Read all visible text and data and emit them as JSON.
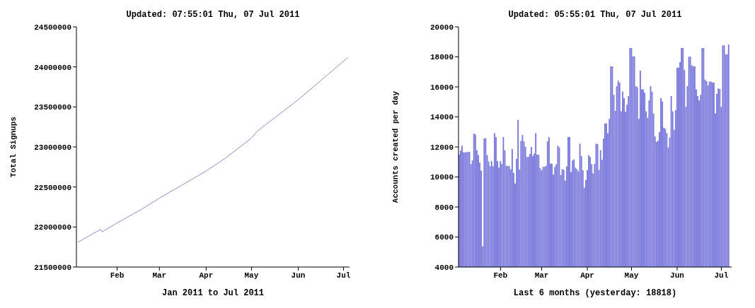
{
  "chart_data": [
    {
      "type": "line",
      "title": "Updated: 07:55:01 Thu, 07 Jul 2011",
      "xlabel": "Jan 2011 to Jul 2011",
      "ylabel": "Total Signups",
      "xlim": [
        "2011-01-05",
        "2011-07-05"
      ],
      "ylim": [
        21500000,
        24500000
      ],
      "xticks": [
        {
          "value": "2011-02-01",
          "label": "Feb"
        },
        {
          "value": "2011-03-01",
          "label": "Mar"
        },
        {
          "value": "2011-04-01",
          "label": "Apr"
        },
        {
          "value": "2011-05-01",
          "label": "May"
        },
        {
          "value": "2011-06-01",
          "label": "Jun"
        },
        {
          "value": "2011-07-01",
          "label": "Jul"
        }
      ],
      "yticks": [
        21500000,
        22000000,
        22500000,
        23000000,
        23500000,
        24000000,
        24500000
      ],
      "series": [
        {
          "color": "#8c8cc8",
          "x": [
            "2011-01-06",
            "2011-01-21",
            "2011-01-22",
            "2011-02-01",
            "2011-02-17",
            "2011-03-01",
            "2011-04-01",
            "2011-04-13",
            "2011-05-01",
            "2011-05-05",
            "2011-06-01",
            "2011-07-04"
          ],
          "values": [
            21810000,
            21970000,
            21940000,
            22050000,
            22220000,
            22360000,
            22700000,
            22850000,
            23110000,
            23200000,
            23590000,
            24120000
          ]
        }
      ]
    },
    {
      "type": "bar",
      "title": "Updated: 05:55:01 Thu, 07 Jul 2011",
      "xlabel": "Last 6 months (yesterday: 18818)",
      "ylabel": "Accounts created per day",
      "xlim": [
        "2011-01-03T12:00",
        "2011-07-08"
      ],
      "ylim": [
        4000,
        20000
      ],
      "xticks": [
        {
          "value": "2011-02-01",
          "label": "Feb"
        },
        {
          "value": "2011-03-01",
          "label": "Mar"
        },
        {
          "value": "2011-04-01",
          "label": "Apr"
        },
        {
          "value": "2011-05-01",
          "label": "May"
        },
        {
          "value": "2011-06-01",
          "label": "Jun"
        },
        {
          "value": "2011-07-01",
          "label": "Jul"
        }
      ],
      "yticks": [
        4000,
        6000,
        8000,
        10000,
        12000,
        14000,
        16000,
        18000,
        20000
      ],
      "series": [
        {
          "color": "#7777dc",
          "x": [
            "2011-01-04",
            "2011-01-05",
            "2011-01-06",
            "2011-01-07",
            "2011-01-08",
            "2011-01-09",
            "2011-01-10",
            "2011-01-11",
            "2011-01-12",
            "2011-01-13",
            "2011-01-14",
            "2011-01-15",
            "2011-01-16",
            "2011-01-17",
            "2011-01-18",
            "2011-01-19",
            "2011-01-20",
            "2011-01-21",
            "2011-01-22",
            "2011-01-23",
            "2011-01-24",
            "2011-01-25",
            "2011-01-26",
            "2011-01-27",
            "2011-01-28",
            "2011-01-29",
            "2011-01-30",
            "2011-01-31",
            "2011-02-01",
            "2011-02-02",
            "2011-02-03",
            "2011-02-04",
            "2011-02-05",
            "2011-02-06",
            "2011-02-07",
            "2011-02-08",
            "2011-02-09",
            "2011-02-10",
            "2011-02-11",
            "2011-02-12",
            "2011-02-13",
            "2011-02-14",
            "2011-02-15",
            "2011-02-16",
            "2011-02-17",
            "2011-02-18",
            "2011-02-19",
            "2011-02-20",
            "2011-02-21",
            "2011-02-22",
            "2011-02-23",
            "2011-02-24",
            "2011-02-25",
            "2011-02-26",
            "2011-02-27",
            "2011-02-28",
            "2011-03-01",
            "2011-03-02",
            "2011-03-03",
            "2011-03-04",
            "2011-03-05",
            "2011-03-06",
            "2011-03-07",
            "2011-03-08",
            "2011-03-09",
            "2011-03-10",
            "2011-03-11",
            "2011-03-12",
            "2011-03-13",
            "2011-03-14",
            "2011-03-15",
            "2011-03-16",
            "2011-03-17",
            "2011-03-18",
            "2011-03-19",
            "2011-03-20",
            "2011-03-21",
            "2011-03-22",
            "2011-03-23",
            "2011-03-24",
            "2011-03-25",
            "2011-03-26",
            "2011-03-27",
            "2011-03-28",
            "2011-03-29",
            "2011-03-30",
            "2011-03-31",
            "2011-04-01",
            "2011-04-02",
            "2011-04-03",
            "2011-04-04",
            "2011-04-05",
            "2011-04-06",
            "2011-04-07",
            "2011-04-08",
            "2011-04-09",
            "2011-04-10",
            "2011-04-11",
            "2011-04-12",
            "2011-04-13",
            "2011-04-14",
            "2011-04-15",
            "2011-04-16",
            "2011-04-17",
            "2011-04-18",
            "2011-04-19",
            "2011-04-20",
            "2011-04-21",
            "2011-04-22",
            "2011-04-23",
            "2011-04-24",
            "2011-04-25",
            "2011-04-26",
            "2011-04-27",
            "2011-04-28",
            "2011-04-29",
            "2011-04-30",
            "2011-05-01",
            "2011-05-02",
            "2011-05-03",
            "2011-05-04",
            "2011-05-05",
            "2011-05-06",
            "2011-05-07",
            "2011-05-08",
            "2011-05-09",
            "2011-05-10",
            "2011-05-11",
            "2011-05-12",
            "2011-05-13",
            "2011-05-14",
            "2011-05-15",
            "2011-05-16",
            "2011-05-17",
            "2011-05-18",
            "2011-05-19",
            "2011-05-20",
            "2011-05-21",
            "2011-05-22",
            "2011-05-23",
            "2011-05-24",
            "2011-05-25",
            "2011-05-26",
            "2011-05-27",
            "2011-05-28",
            "2011-05-29",
            "2011-05-30",
            "2011-05-31",
            "2011-06-01",
            "2011-06-02",
            "2011-06-03",
            "2011-06-04",
            "2011-06-05",
            "2011-06-06",
            "2011-06-07",
            "2011-06-08",
            "2011-06-09",
            "2011-06-10",
            "2011-06-11",
            "2011-06-12",
            "2011-06-13",
            "2011-06-14",
            "2011-06-15",
            "2011-06-16",
            "2011-06-17",
            "2011-06-18",
            "2011-06-19",
            "2011-06-20",
            "2011-06-21",
            "2011-06-22",
            "2011-06-23",
            "2011-06-24",
            "2011-06-25",
            "2011-06-26",
            "2011-06-27",
            "2011-06-28",
            "2011-06-29",
            "2011-06-30",
            "2011-07-01",
            "2011-07-02",
            "2011-07-03",
            "2011-07-04",
            "2011-07-05",
            "2011-07-06"
          ],
          "values": [
            11490,
            11760,
            12080,
            11640,
            11640,
            11640,
            11670,
            11670,
            10850,
            11100,
            12890,
            12830,
            11780,
            11460,
            10950,
            10420,
            5380,
            12570,
            12570,
            11460,
            11030,
            10710,
            11060,
            10710,
            12920,
            12660,
            11060,
            10620,
            11060,
            10850,
            12660,
            11780,
            10740,
            10740,
            10710,
            10500,
            11860,
            10270,
            9570,
            11200,
            13790,
            10500,
            12400,
            12790,
            12360,
            12010,
            11330,
            11330,
            11530,
            12000,
            11400,
            11550,
            12920,
            11480,
            11480,
            10590,
            10450,
            10670,
            10670,
            10740,
            12370,
            12660,
            10910,
            10880,
            10150,
            10670,
            10850,
            12080,
            11970,
            10130,
            10520,
            10470,
            9750,
            10710,
            12660,
            12660,
            10330,
            11100,
            11170,
            10620,
            10520,
            10370,
            12220,
            11390,
            10450,
            9280,
            9790,
            10450,
            11460,
            11320,
            10850,
            10230,
            10880,
            12220,
            12190,
            10470,
            11780,
            11140,
            12560,
            13570,
            13570,
            12920,
            13870,
            17360,
            17360,
            15470,
            14400,
            16050,
            16410,
            16270,
            14370,
            15690,
            15250,
            14340,
            14810,
            15390,
            18590,
            18590,
            18040,
            18040,
            16050,
            15980,
            13870,
            17080,
            15830,
            15830,
            15610,
            14370,
            13940,
            15100,
            16050,
            15690,
            14230,
            12700,
            12340,
            12410,
            12990,
            15250,
            15030,
            13280,
            13210,
            12920,
            11970,
            12630,
            15390,
            14370,
            13140,
            14450,
            17280,
            17280,
            17650,
            18590,
            18590,
            17140,
            14670,
            16050,
            18010,
            18010,
            17440,
            17360,
            17360,
            15830,
            15390,
            15100,
            15470,
            18590,
            18590,
            16480,
            16380,
            16090,
            16350,
            16350,
            16300,
            16300,
            14230,
            15540,
            15900,
            15860,
            14670,
            18770,
            18770,
            18160,
            18160,
            18818
          ]
        }
      ]
    }
  ]
}
